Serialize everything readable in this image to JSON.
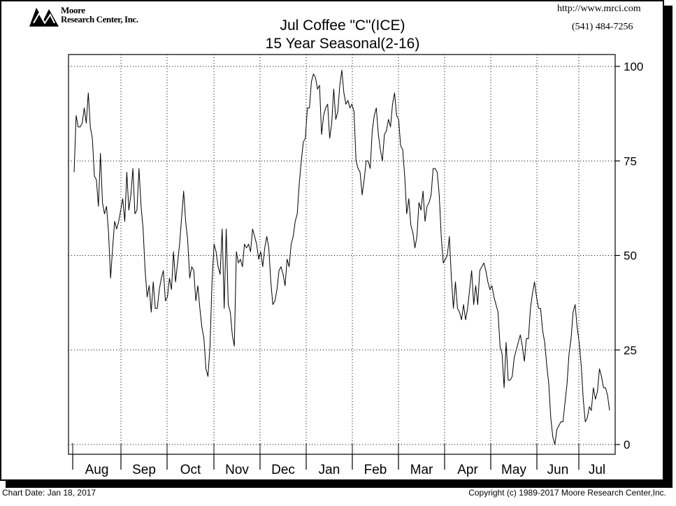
{
  "header": {
    "logo_line1": "Moore",
    "logo_line2": "Research Center, Inc.",
    "website": "http://www.mrci.com",
    "phone": "(541) 484-7256"
  },
  "footer": {
    "chart_date": "Chart Date: Jan 18, 2017",
    "copyright": "Copyright (c) 1989-2017 Moore Research Center,Inc."
  },
  "chart_data": {
    "type": "line",
    "title": "Jul Coffee \"C\"(ICE)",
    "subtitle": "15 Year Seasonal(2-16)",
    "months": [
      "Aug",
      "Sep",
      "Oct",
      "Nov",
      "Dec",
      "Jan",
      "Feb",
      "Mar",
      "Apr",
      "May",
      "Jun",
      "Jul"
    ],
    "y_ticks": [
      100,
      75,
      50,
      25,
      0
    ],
    "ylim": [
      0,
      100
    ],
    "y_axis_side": "right",
    "grid": true,
    "series": [
      {
        "values": [
          72,
          87,
          84,
          84,
          85,
          89,
          85,
          93,
          84,
          81,
          71,
          70,
          63,
          77,
          64,
          61,
          63,
          56,
          44,
          52,
          59,
          57,
          59,
          62,
          65,
          59,
          72,
          62,
          66,
          73,
          61,
          62,
          73,
          63,
          57,
          46,
          39,
          42,
          35,
          43,
          36,
          36,
          41,
          44,
          46,
          38,
          39,
          44,
          41,
          51,
          43,
          48,
          53,
          60,
          67,
          59,
          54,
          44,
          47,
          46,
          38,
          42,
          36,
          31,
          28,
          20,
          18,
          26,
          43,
          53,
          51,
          47,
          45,
          57,
          36,
          57,
          37,
          35,
          29,
          26,
          51,
          48,
          49,
          47,
          53,
          52,
          53,
          51,
          57,
          55,
          53,
          49,
          51,
          47,
          52,
          55,
          52,
          43,
          37,
          38,
          41,
          46,
          47,
          45,
          42,
          49,
          47,
          53,
          55,
          59,
          61,
          69,
          75,
          80,
          81,
          89,
          89,
          96,
          98,
          97,
          94,
          95,
          82,
          87,
          89,
          90,
          81,
          85,
          94,
          86,
          88,
          95,
          99,
          93,
          90,
          91,
          89,
          90,
          88,
          75,
          73,
          72,
          66,
          70,
          75,
          75,
          73,
          83,
          87,
          89,
          82,
          78,
          75,
          82,
          83,
          86,
          84,
          90,
          93,
          87,
          86,
          79,
          78,
          71,
          61,
          65,
          58,
          56,
          52,
          55,
          64,
          62,
          67,
          59,
          63,
          64,
          66,
          73,
          73,
          72,
          66,
          55,
          48,
          49,
          50,
          55,
          44,
          36,
          43,
          36,
          35,
          33,
          37,
          33,
          36,
          41,
          46,
          37,
          42,
          37,
          46,
          47,
          48,
          46,
          43,
          41,
          42,
          39,
          37,
          35,
          26,
          24,
          15,
          27,
          17,
          17,
          18,
          23,
          25,
          27,
          29,
          26,
          22,
          28,
          28,
          36,
          40,
          43,
          39,
          36,
          36,
          30,
          27,
          21,
          16,
          7,
          2,
          0,
          4,
          5,
          6,
          6,
          11,
          16,
          24,
          28,
          35,
          37,
          31,
          27,
          21,
          12,
          6,
          7,
          10,
          9,
          15,
          12,
          14,
          20,
          18,
          15,
          15,
          13,
          9
        ]
      }
    ]
  }
}
